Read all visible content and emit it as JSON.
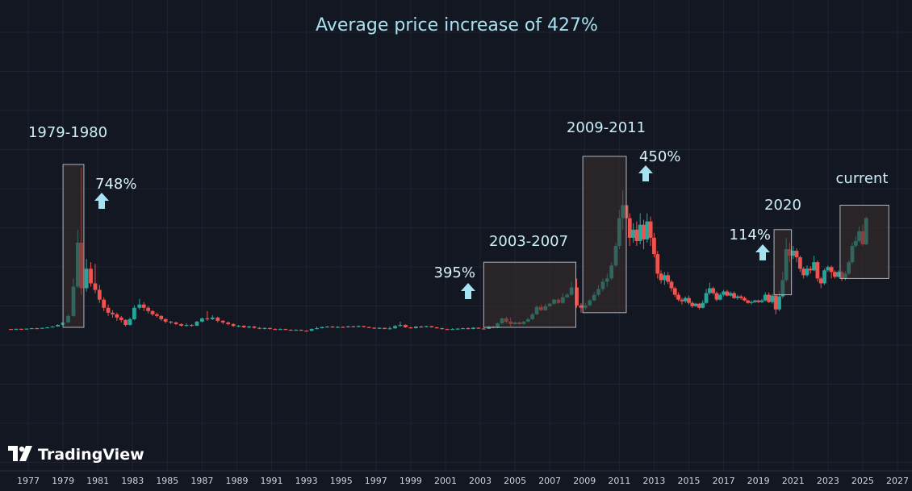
{
  "chart_data": {
    "type": "candlestick",
    "title": "Average price increase of 427%",
    "x_axis": {
      "tick_labels": [
        "1977",
        "1979",
        "1981",
        "1983",
        "1985",
        "1987",
        "1989",
        "1991",
        "1993",
        "1995",
        "1997",
        "1999",
        "2001",
        "2003",
        "2005",
        "2007",
        "2009",
        "2011",
        "2013",
        "2015",
        "2017",
        "2019",
        "2021",
        "2023",
        "2025",
        "2027"
      ],
      "range": [
        1976,
        2028
      ]
    },
    "colors": {
      "up": "#26a69a",
      "down": "#ef5350",
      "highlight_fill": "#3b302b",
      "highlight_stroke": "#b2b5be",
      "arrow": "#a6e2f0"
    },
    "periods": [
      {
        "label": "1979-1980",
        "increase": "748%",
        "x": [
          1979.0,
          1980.2
        ],
        "y": [
          0,
          100
        ]
      },
      {
        "label": "2003-2007",
        "increase": "395%",
        "x": [
          2003.2,
          2008.5
        ],
        "y": [
          0,
          40
        ]
      },
      {
        "label": "2009-2011",
        "increase": "450%",
        "x": [
          2008.9,
          2011.4
        ],
        "y": [
          9,
          105
        ]
      },
      {
        "label": "2020",
        "increase": "114%",
        "x": [
          2019.9,
          2020.9
        ],
        "y": [
          20,
          60
        ]
      },
      {
        "label": "current",
        "increase": "",
        "x": [
          2023.7,
          2026.5
        ],
        "y": [
          30,
          75
        ]
      }
    ],
    "candles": [
      [
        1976.0,
        -1.0,
        -1.1,
        -1.2,
        -0.9
      ],
      [
        1976.3,
        -1.1,
        -0.9,
        -1.2,
        -0.8
      ],
      [
        1976.6,
        -0.9,
        -1.0,
        -1.1,
        -0.8
      ],
      [
        1976.9,
        -1.0,
        -0.8,
        -1.1,
        -0.7
      ],
      [
        1977.2,
        -0.8,
        -0.5,
        -0.9,
        -0.4
      ],
      [
        1977.5,
        -0.5,
        -0.7,
        -0.8,
        -0.3
      ],
      [
        1977.8,
        -0.7,
        -0.3,
        -0.8,
        -0.2
      ],
      [
        1978.1,
        -0.3,
        0.0,
        -0.4,
        0.3
      ],
      [
        1978.4,
        0.0,
        0.5,
        -0.1,
        0.8
      ],
      [
        1978.7,
        0.5,
        1.5,
        0.3,
        1.9
      ],
      [
        1979.0,
        1.5,
        3.0,
        1.2,
        3.3
      ],
      [
        1979.3,
        3.0,
        7.0,
        2.8,
        8.0
      ],
      [
        1979.6,
        7.0,
        25.0,
        6.5,
        30.0
      ],
      [
        1979.85,
        25.0,
        52.0,
        24.0,
        60.0
      ],
      [
        1980.05,
        52.0,
        24.0,
        20.0,
        98.0
      ],
      [
        1980.35,
        24.0,
        36.0,
        22.0,
        42.0
      ],
      [
        1980.6,
        36.0,
        27.0,
        25.0,
        40.0
      ],
      [
        1980.85,
        27.0,
        23.0,
        21.0,
        39.0
      ],
      [
        1981.1,
        23.0,
        17.0,
        15.0,
        26.0
      ],
      [
        1981.35,
        17.0,
        12.0,
        10.0,
        18.5
      ],
      [
        1981.6,
        12.0,
        9.0,
        7.0,
        14.0
      ],
      [
        1981.85,
        9.0,
        8.0,
        6.0,
        10.5
      ],
      [
        1982.1,
        8.0,
        6.0,
        4.0,
        9.0
      ],
      [
        1982.35,
        6.0,
        4.5,
        3.0,
        7.0
      ],
      [
        1982.6,
        4.5,
        1.5,
        0.5,
        5.0
      ],
      [
        1982.85,
        1.5,
        5.0,
        1.0,
        6.0
      ],
      [
        1983.1,
        5.0,
        12.0,
        4.5,
        13.5
      ],
      [
        1983.4,
        12.0,
        14.0,
        11.0,
        17.5
      ],
      [
        1983.65,
        14.0,
        12.0,
        10.0,
        15.5
      ],
      [
        1983.9,
        12.0,
        10.0,
        8.5,
        13.0
      ],
      [
        1984.15,
        10.0,
        8.0,
        7.0,
        10.5
      ],
      [
        1984.4,
        8.0,
        7.0,
        6.0,
        9.0
      ],
      [
        1984.65,
        7.0,
        5.0,
        4.0,
        7.5
      ],
      [
        1984.9,
        5.0,
        3.5,
        2.5,
        5.5
      ],
      [
        1985.2,
        3.5,
        3.0,
        2.0,
        4.0
      ],
      [
        1985.5,
        3.0,
        2.0,
        1.5,
        3.5
      ],
      [
        1985.8,
        2.0,
        1.0,
        0.5,
        2.5
      ],
      [
        1986.1,
        1.0,
        1.5,
        0.5,
        2.5
      ],
      [
        1986.4,
        1.5,
        1.0,
        0.4,
        2.0
      ],
      [
        1986.7,
        1.0,
        3.5,
        0.8,
        4.0
      ],
      [
        1987.0,
        3.5,
        5.5,
        3.0,
        6.0
      ],
      [
        1987.3,
        5.5,
        5.0,
        4.0,
        10.0
      ],
      [
        1987.6,
        5.0,
        6.0,
        4.5,
        7.5
      ],
      [
        1987.9,
        6.0,
        4.0,
        3.0,
        6.5
      ],
      [
        1988.2,
        4.0,
        3.0,
        2.0,
        4.5
      ],
      [
        1988.5,
        3.0,
        2.0,
        1.2,
        3.5
      ],
      [
        1988.8,
        2.0,
        0.8,
        0.3,
        2.5
      ],
      [
        1989.1,
        0.8,
        1.0,
        0.0,
        1.5
      ],
      [
        1989.4,
        1.0,
        0.0,
        -0.5,
        1.2
      ],
      [
        1989.7,
        0.0,
        0.5,
        -0.5,
        1.0
      ],
      [
        1990.0,
        0.5,
        -0.3,
        -0.8,
        1.0
      ],
      [
        1990.3,
        -0.3,
        -0.8,
        -1.2,
        0.2
      ],
      [
        1990.6,
        -0.8,
        -0.4,
        -1.3,
        0.0
      ],
      [
        1990.9,
        -0.4,
        -1.0,
        -1.4,
        -0.2
      ],
      [
        1991.2,
        -1.0,
        -1.2,
        -1.6,
        -0.6
      ],
      [
        1991.5,
        -1.2,
        -1.0,
        -1.6,
        -0.6
      ],
      [
        1991.8,
        -1.0,
        -1.5,
        -1.8,
        -0.8
      ],
      [
        1992.1,
        -1.5,
        -1.7,
        -2.0,
        -1.2
      ],
      [
        1992.4,
        -1.7,
        -1.5,
        -2.0,
        -1.2
      ],
      [
        1992.7,
        -1.5,
        -2.0,
        -2.3,
        -1.3
      ],
      [
        1993.0,
        -2.0,
        -2.2,
        -2.5,
        -1.8
      ],
      [
        1993.3,
        -2.2,
        -1.0,
        -2.4,
        -0.7
      ],
      [
        1993.6,
        -1.0,
        -0.5,
        -1.2,
        0.5
      ],
      [
        1993.9,
        -0.5,
        0.2,
        -0.8,
        0.5
      ],
      [
        1994.2,
        0.2,
        0.5,
        -0.2,
        0.8
      ],
      [
        1994.5,
        0.5,
        0.0,
        -0.3,
        0.8
      ],
      [
        1994.8,
        0.0,
        0.3,
        -0.3,
        0.7
      ],
      [
        1995.1,
        0.3,
        0.0,
        -0.3,
        0.6
      ],
      [
        1995.4,
        0.0,
        0.6,
        -0.2,
        0.9
      ],
      [
        1995.7,
        0.6,
        0.2,
        0.0,
        0.9
      ],
      [
        1996.0,
        0.2,
        0.8,
        0.0,
        1.2
      ],
      [
        1996.3,
        0.8,
        0.2,
        -0.1,
        1.0
      ],
      [
        1996.6,
        0.2,
        -0.2,
        -0.5,
        0.4
      ],
      [
        1996.9,
        -0.2,
        -0.6,
        -0.9,
        0.0
      ],
      [
        1997.2,
        -0.6,
        -0.3,
        -1.0,
        0.0
      ],
      [
        1997.5,
        -0.3,
        -1.0,
        -1.2,
        -0.2
      ],
      [
        1997.8,
        -1.0,
        -0.6,
        -1.3,
        0.5
      ],
      [
        1998.1,
        -0.6,
        0.8,
        -0.9,
        1.3
      ],
      [
        1998.4,
        0.8,
        1.5,
        0.5,
        3.5
      ],
      [
        1998.7,
        1.5,
        0.0,
        -0.3,
        1.8
      ],
      [
        1999.0,
        0.0,
        -0.5,
        -0.8,
        0.3
      ],
      [
        1999.3,
        -0.5,
        0.5,
        -0.8,
        0.8
      ],
      [
        1999.6,
        0.5,
        0.2,
        -0.2,
        1.0
      ],
      [
        1999.9,
        0.2,
        0.7,
        -0.1,
        1.0
      ],
      [
        2000.2,
        0.7,
        0.0,
        -0.2,
        1.0
      ],
      [
        2000.5,
        0.0,
        -0.5,
        -0.8,
        0.3
      ],
      [
        2000.8,
        -0.5,
        -1.0,
        -1.3,
        -0.3
      ],
      [
        2001.1,
        -1.0,
        -1.2,
        -1.6,
        -0.8
      ],
      [
        2001.4,
        -1.2,
        -1.0,
        -1.5,
        -0.5
      ],
      [
        2001.7,
        -1.0,
        -0.8,
        -1.3,
        -0.4
      ],
      [
        2002.0,
        -0.8,
        -0.5,
        -1.0,
        -0.2
      ],
      [
        2002.3,
        -0.5,
        -1.0,
        -1.2,
        0.0
      ],
      [
        2002.6,
        -1.0,
        -0.2,
        -1.2,
        0.1
      ],
      [
        2002.9,
        -0.2,
        -0.7,
        -0.9,
        0.0
      ],
      [
        2003.2,
        -0.7,
        -0.9,
        -1.1,
        -0.4
      ],
      [
        2003.5,
        -0.9,
        0.5,
        -1.0,
        1.0
      ],
      [
        2003.75,
        0.5,
        -0.3,
        -0.6,
        0.9
      ],
      [
        2004.0,
        -0.3,
        2.5,
        -0.5,
        3.0
      ],
      [
        2004.25,
        2.5,
        5.5,
        2.0,
        6.0
      ],
      [
        2004.5,
        5.5,
        3.5,
        2.5,
        6.5
      ],
      [
        2004.75,
        3.5,
        2.0,
        0.5,
        6.0
      ],
      [
        2005.0,
        2.0,
        3.0,
        1.5,
        3.5
      ],
      [
        2005.25,
        3.0,
        2.0,
        1.5,
        3.5
      ],
      [
        2005.5,
        2.0,
        3.5,
        1.5,
        4.0
      ],
      [
        2005.75,
        3.5,
        5.0,
        3.0,
        6.0
      ],
      [
        2006.0,
        5.0,
        8.0,
        4.5,
        9.0
      ],
      [
        2006.25,
        8.0,
        12.5,
        7.5,
        13.5
      ],
      [
        2006.5,
        12.5,
        10.5,
        10.0,
        14.0
      ],
      [
        2006.75,
        10.5,
        13.0,
        10.0,
        14.5
      ],
      [
        2007.0,
        13.0,
        14.5,
        12.5,
        15.0
      ],
      [
        2007.25,
        14.5,
        17.0,
        14.0,
        17.5
      ],
      [
        2007.5,
        17.0,
        15.0,
        14.5,
        18.0
      ],
      [
        2007.75,
        15.0,
        18.5,
        14.5,
        21.0
      ],
      [
        2008.0,
        18.5,
        20.0,
        18.0,
        21.0
      ],
      [
        2008.25,
        20.0,
        24.5,
        19.5,
        28.0
      ],
      [
        2008.55,
        24.5,
        13.5,
        12.0,
        30.0
      ],
      [
        2008.8,
        13.5,
        12.0,
        9.0,
        15.0
      ],
      [
        2009.05,
        12.0,
        13.5,
        11.0,
        15.0
      ],
      [
        2009.3,
        13.5,
        16.5,
        13.0,
        17.5
      ],
      [
        2009.55,
        16.5,
        20.0,
        16.0,
        22.0
      ],
      [
        2009.8,
        20.0,
        23.5,
        19.0,
        26.0
      ],
      [
        2010.05,
        23.5,
        28.0,
        22.0,
        30.0
      ],
      [
        2010.3,
        28.0,
        30.0,
        25.0,
        33.0
      ],
      [
        2010.55,
        30.0,
        38.0,
        29.0,
        40.0
      ],
      [
        2010.8,
        38.0,
        50.0,
        37.0,
        52.0
      ],
      [
        2011.0,
        50.0,
        67.0,
        48.0,
        72.0
      ],
      [
        2011.2,
        67.0,
        75.0,
        60.0,
        84.0
      ],
      [
        2011.4,
        75.0,
        67.0,
        53.0,
        102.0
      ],
      [
        2011.6,
        67.0,
        55.0,
        50.0,
        70.0
      ],
      [
        2011.8,
        55.0,
        60.0,
        52.0,
        64.0
      ],
      [
        2012.0,
        60.0,
        53.0,
        50.0,
        65.0
      ],
      [
        2012.2,
        53.0,
        63.0,
        51.0,
        70.0
      ],
      [
        2012.4,
        63.0,
        54.0,
        48.0,
        66.0
      ],
      [
        2012.6,
        54.0,
        65.0,
        52.0,
        70.0
      ],
      [
        2012.8,
        65.0,
        55.0,
        50.0,
        68.0
      ],
      [
        2013.0,
        55.0,
        45.0,
        43.0,
        58.0
      ],
      [
        2013.2,
        45.0,
        33.0,
        30.0,
        47.0
      ],
      [
        2013.4,
        33.0,
        29.0,
        27.0,
        35.0
      ],
      [
        2013.6,
        29.0,
        32.0,
        26.0,
        34.0
      ],
      [
        2013.8,
        32.0,
        28.0,
        26.5,
        34.0
      ],
      [
        2014.0,
        28.0,
        24.0,
        22.0,
        29.0
      ],
      [
        2014.2,
        24.0,
        20.0,
        18.5,
        25.0
      ],
      [
        2014.4,
        20.0,
        17.0,
        16.0,
        21.5
      ],
      [
        2014.6,
        17.0,
        16.0,
        14.0,
        18.0
      ],
      [
        2014.8,
        16.0,
        18.0,
        15.0,
        19.0
      ],
      [
        2015.0,
        18.0,
        15.0,
        14.0,
        19.5
      ],
      [
        2015.2,
        15.0,
        13.0,
        12.0,
        16.0
      ],
      [
        2015.4,
        13.0,
        14.5,
        12.5,
        15.0
      ],
      [
        2015.6,
        14.5,
        12.0,
        11.0,
        15.0
      ],
      [
        2015.8,
        12.0,
        15.0,
        11.5,
        16.5
      ],
      [
        2016.0,
        15.0,
        21.0,
        14.5,
        23.5
      ],
      [
        2016.2,
        21.0,
        24.0,
        20.0,
        27.5
      ],
      [
        2016.4,
        24.0,
        21.0,
        20.0,
        25.0
      ],
      [
        2016.6,
        21.0,
        17.0,
        16.0,
        22.0
      ],
      [
        2016.8,
        17.0,
        20.0,
        16.5,
        21.0
      ],
      [
        2017.0,
        20.0,
        22.0,
        19.0,
        23.0
      ],
      [
        2017.2,
        22.0,
        19.5,
        19.0,
        23.0
      ],
      [
        2017.4,
        19.5,
        21.0,
        19.0,
        22.0
      ],
      [
        2017.6,
        21.0,
        18.0,
        17.5,
        22.0
      ],
      [
        2017.8,
        18.0,
        19.0,
        17.0,
        20.0
      ],
      [
        2018.0,
        19.0,
        18.0,
        17.0,
        20.0
      ],
      [
        2018.2,
        18.0,
        16.5,
        16.0,
        19.0
      ],
      [
        2018.4,
        16.5,
        15.0,
        14.5,
        17.0
      ],
      [
        2018.6,
        15.0,
        15.5,
        14.0,
        16.5
      ],
      [
        2018.8,
        15.5,
        16.5,
        15.0,
        17.0
      ],
      [
        2019.0,
        16.5,
        15.5,
        15.0,
        17.0
      ],
      [
        2019.2,
        15.5,
        16.5,
        15.0,
        17.5
      ],
      [
        2019.4,
        16.5,
        20.0,
        16.0,
        21.5
      ],
      [
        2019.6,
        20.0,
        15.5,
        15.0,
        21.5
      ],
      [
        2019.8,
        15.5,
        19.5,
        14.5,
        20.5
      ],
      [
        2020.0,
        19.5,
        11.0,
        8.0,
        20.5
      ],
      [
        2020.2,
        11.0,
        19.0,
        10.0,
        22.0
      ],
      [
        2020.4,
        19.0,
        29.0,
        18.0,
        34.0
      ],
      [
        2020.6,
        29.0,
        48.0,
        28.0,
        55.0
      ],
      [
        2020.8,
        48.0,
        44.0,
        40.0,
        52.0
      ],
      [
        2021.0,
        44.0,
        47.0,
        42.0,
        50.0
      ],
      [
        2021.2,
        47.0,
        43.0,
        40.0,
        48.5
      ],
      [
        2021.4,
        43.0,
        36.0,
        34.0,
        44.0
      ],
      [
        2021.6,
        36.0,
        32.0,
        30.0,
        37.0
      ],
      [
        2021.8,
        32.0,
        36.0,
        31.0,
        38.0
      ],
      [
        2022.0,
        36.0,
        35.0,
        33.0,
        37.5
      ],
      [
        2022.2,
        35.0,
        40.0,
        34.5,
        44.0
      ],
      [
        2022.4,
        40.0,
        30.0,
        28.0,
        41.0
      ],
      [
        2022.6,
        30.0,
        27.0,
        24.0,
        31.0
      ],
      [
        2022.8,
        27.0,
        35.0,
        26.0,
        36.0
      ],
      [
        2023.0,
        35.0,
        37.0,
        34.0,
        38.0
      ],
      [
        2023.2,
        37.0,
        34.0,
        30.0,
        38.0
      ],
      [
        2023.4,
        34.0,
        31.0,
        30.0,
        35.0
      ],
      [
        2023.6,
        31.0,
        34.0,
        30.5,
        35.0
      ],
      [
        2023.8,
        34.0,
        30.0,
        28.5,
        35.0
      ],
      [
        2024.0,
        30.0,
        33.0,
        29.0,
        34.5
      ],
      [
        2024.2,
        33.0,
        40.0,
        32.0,
        41.0
      ],
      [
        2024.4,
        40.0,
        50.0,
        39.0,
        52.0
      ],
      [
        2024.6,
        50.0,
        53.0,
        49.0,
        56.0
      ],
      [
        2024.8,
        53.0,
        59.0,
        52.0,
        62.0
      ],
      [
        2025.0,
        59.0,
        51.0,
        50.0,
        63.0
      ],
      [
        2025.2,
        51.0,
        67.0,
        50.5,
        68.0
      ]
    ]
  },
  "branding": {
    "name": "TradingView",
    "logo_icon": "tradingview-logo-icon"
  }
}
